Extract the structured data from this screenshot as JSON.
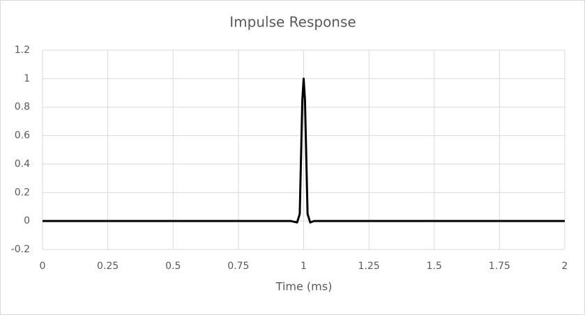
{
  "chart_data": {
    "type": "line",
    "title": "Impulse Response",
    "x_label": "Time (ms)",
    "x": [
      0,
      0.95,
      0.975,
      0.985,
      0.99,
      0.995,
      1,
      1.005,
      1.01,
      1.015,
      1.025,
      1.04,
      2
    ],
    "series": [
      {
        "color": "#000000",
        "values": [
          0,
          0,
          -0.01,
          0.05,
          0.45,
          0.85,
          1,
          0.85,
          0.45,
          0.05,
          -0.01,
          0,
          0
        ]
      }
    ],
    "xlim": [
      0,
      2
    ],
    "xticks": [
      0,
      0.25,
      0.5,
      0.75,
      1,
      1.25,
      1.5,
      1.75,
      2
    ],
    "ylim": [
      -0.2,
      1.2
    ],
    "yticks": [
      -0.2,
      0,
      0.2,
      0.4,
      0.6,
      0.8,
      1,
      1.2
    ],
    "grid": true
  }
}
